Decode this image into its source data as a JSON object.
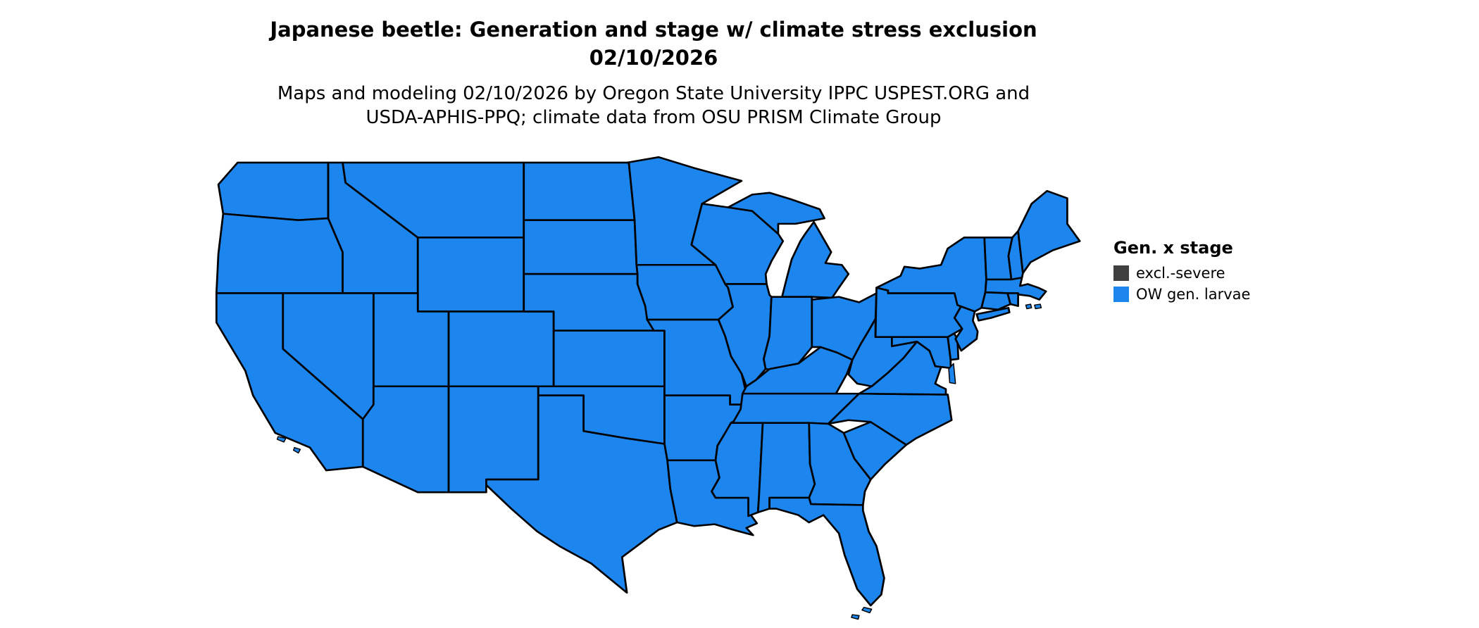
{
  "header": {
    "title_line1": "Japanese beetle: Generation and stage w/ climate stress exclusion",
    "title_line2": "02/10/2026",
    "subtitle_line1": "Maps and modeling 02/10/2026 by Oregon State University IPPC USPEST.ORG and",
    "subtitle_line2": "USDA-APHIS-PPQ; climate data from OSU PRISM Climate Group"
  },
  "legend": {
    "title": "Gen. x stage",
    "items": [
      {
        "label": "excl.-severe",
        "color": "#404040"
      },
      {
        "label": "OW gen. larvae",
        "color": "#1C86EE"
      }
    ]
  },
  "map": {
    "region": "Contiguous United States",
    "fill_value_all_states": "OW gen. larvae",
    "fill_color": "#1C86EE",
    "border_color": "#000000",
    "background_color": "#FFFFFF"
  }
}
